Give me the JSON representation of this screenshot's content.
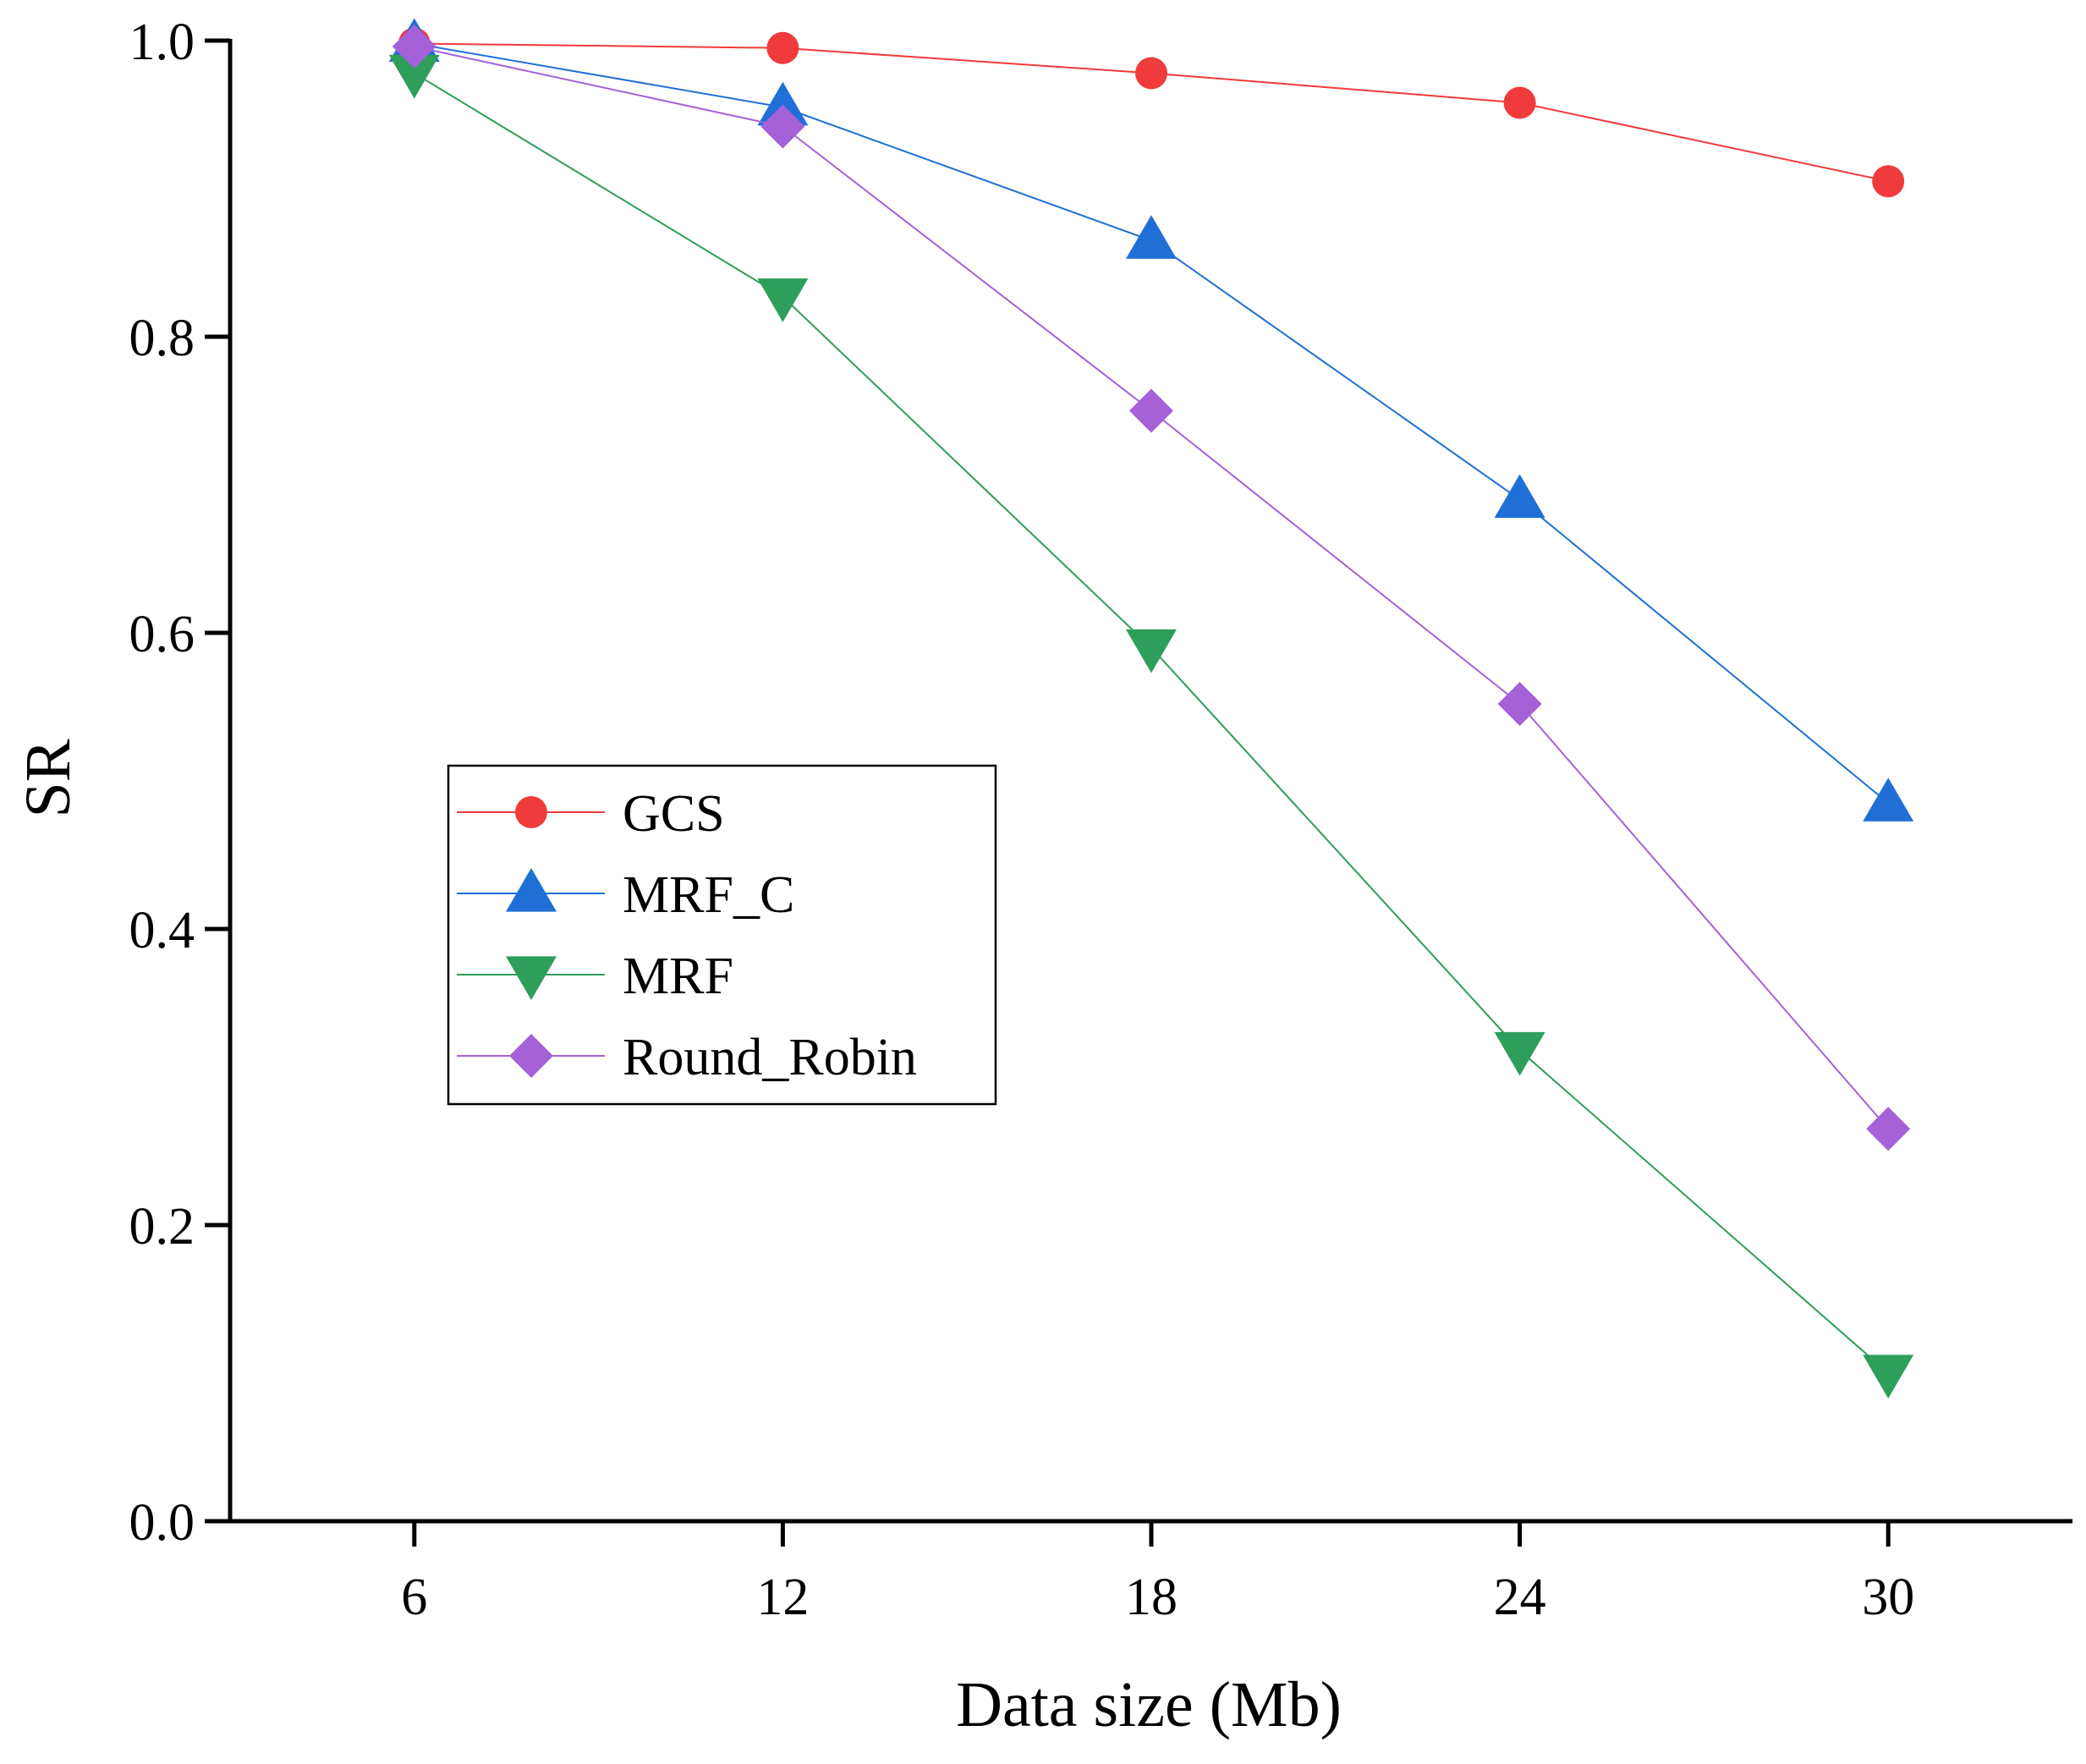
{
  "chart_data": {
    "type": "line",
    "title": "",
    "xlabel": "Data size (Mb)",
    "ylabel": "SR",
    "x": [
      6,
      12,
      18,
      24,
      30
    ],
    "x_tick_labels": [
      "6",
      "12",
      "18",
      "24",
      "30"
    ],
    "xlim": [
      3,
      33
    ],
    "ylim": [
      0.0,
      1.0
    ],
    "y_ticks": [
      0.0,
      0.2,
      0.4,
      0.6,
      0.8,
      1.0
    ],
    "y_tick_labels": [
      "0.0",
      "0.2",
      "0.4",
      "0.6",
      "0.8",
      "1.0"
    ],
    "grid": false,
    "legend_position": "center-left",
    "series": [
      {
        "name": "GCS",
        "color": "#ef3b3b",
        "marker": "circle",
        "values": [
          0.998,
          0.995,
          0.978,
          0.958,
          0.905
        ]
      },
      {
        "name": "MRF_C",
        "color": "#1f6fd6",
        "marker": "triangle-up",
        "values": [
          0.998,
          0.955,
          0.865,
          0.69,
          0.485
        ]
      },
      {
        "name": "MRF",
        "color": "#2e9e5b",
        "marker": "triangle-down",
        "values": [
          0.978,
          0.827,
          0.59,
          0.318,
          0.1
        ]
      },
      {
        "name": "Round_Robin",
        "color": "#a461d8",
        "marker": "diamond",
        "values": [
          0.996,
          0.942,
          0.75,
          0.552,
          0.265
        ]
      }
    ]
  }
}
